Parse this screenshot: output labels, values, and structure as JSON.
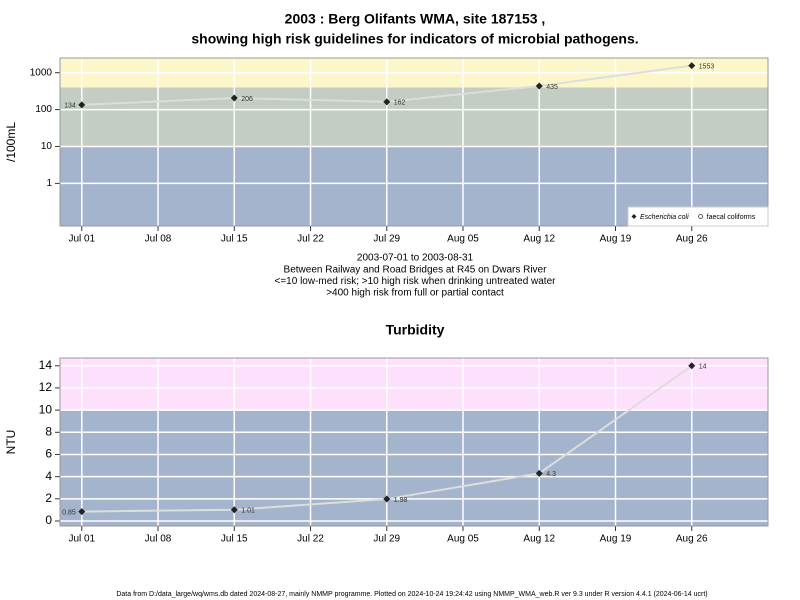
{
  "chart_data": [
    {
      "type": "line",
      "title": [
        "2003 : Berg Olifants WMA, site 187153 ,",
        "showing high risk guidelines for indicators of microbial pathogens."
      ],
      "subtitle": [
        "2003-07-01 to 2003-08-31",
        "Between Railway and Road Bridges at R45 on Dwars River",
        "<=10 low-med risk; >10 high risk when drinking untreated water",
        ">400 high risk from full or partial contact"
      ],
      "y_label": "/100mL",
      "x": [
        "Jul 01",
        "Jul 15",
        "Jul 29",
        "Aug 12",
        "Aug 26"
      ],
      "xlim": [
        "Jun 29",
        "Sep 02"
      ],
      "xticks": [
        "Jul 01",
        "Jul 08",
        "Jul 15",
        "Jul 22",
        "Jul 29",
        "Aug 05",
        "Aug 12",
        "Aug 19",
        "Aug 26"
      ],
      "ylim": [
        0.07,
        2500
      ],
      "yticks": [
        1,
        10,
        100,
        1000
      ],
      "log_y": true,
      "grid": true,
      "thresholds": [
        10,
        400
      ],
      "band_colors": [
        "#a3b4cc",
        "#c3cdc3",
        "#fcf6cb"
      ],
      "legend": "bottom-right",
      "series": [
        {
          "name": "Escherichia coli",
          "color": "#dddddd",
          "marker": "diamond",
          "values": [
            134,
            206,
            162,
            435,
            1553
          ]
        },
        {
          "name": "faecal coliforms",
          "color": "#dddddd",
          "marker": "open-circle",
          "values": [
            null,
            null,
            null,
            null,
            null
          ]
        }
      ]
    },
    {
      "type": "line",
      "title": "Turbidity",
      "y_label": "NTU",
      "x": [
        "Jul 01",
        "Jul 15",
        "Jul 29",
        "Aug 12",
        "Aug 26"
      ],
      "xlim": [
        "Jun 29",
        "Sep 02"
      ],
      "xticks": [
        "Jul 01",
        "Jul 08",
        "Jul 15",
        "Jul 22",
        "Jul 29",
        "Aug 05",
        "Aug 12",
        "Aug 19",
        "Aug 26"
      ],
      "ylim": [
        -0.45,
        14.7
      ],
      "yticks": [
        0,
        2,
        4,
        6,
        8,
        10,
        12,
        14
      ],
      "log_y": false,
      "grid": true,
      "thresholds": [
        10
      ],
      "band_colors": [
        "#a3b4cc",
        "#fde1fc"
      ],
      "series": [
        {
          "name": "Turbidity",
          "color": "#dddddd",
          "marker": "diamond",
          "values": [
            0.85,
            1.01,
            1.98,
            4.3,
            14
          ]
        }
      ]
    }
  ],
  "footer": "Data from D:/data_large/wq/wms.db dated 2024-08-27, mainly NMMP programme. Plotted on 2024-10-24 19:24:42 using NMMP_WMA_web.R ver 9.3 under R version 4.4.1 (2024-06-14 ucrt)"
}
